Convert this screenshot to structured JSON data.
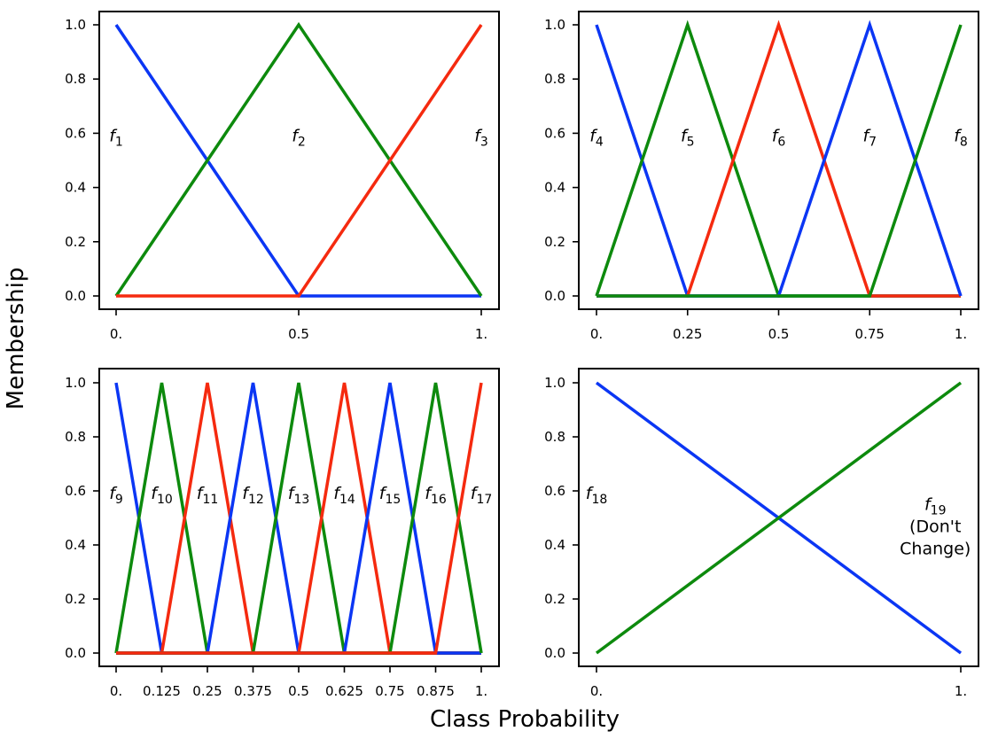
{
  "figure": {
    "xlabel": "Class Probability",
    "ylabel": "Membership"
  },
  "colors": {
    "blue": "#0b36f4",
    "green": "#0d8a0d",
    "red": "#f52a0f"
  },
  "chart_data": [
    {
      "type": "line",
      "xlim": [
        0,
        1
      ],
      "ylim": [
        0,
        1
      ],
      "xticks": [
        0,
        0.5,
        1
      ],
      "xtick_labels": [
        "0.",
        "0.5",
        "1."
      ],
      "yticks": [
        0,
        0.2,
        0.4,
        0.6,
        0.8,
        1.0
      ],
      "ytick_labels": [
        "0.0",
        "0.2",
        "0.4",
        "0.6",
        "0.8",
        "1.0"
      ],
      "series": [
        {
          "name": "f1",
          "color": "blue",
          "x": [
            0,
            0.5,
            1
          ],
          "y": [
            1,
            0,
            0
          ]
        },
        {
          "name": "f2",
          "color": "green",
          "x": [
            0,
            0.5,
            1
          ],
          "y": [
            0,
            1,
            0
          ]
        },
        {
          "name": "f3",
          "color": "red",
          "x": [
            0,
            0.5,
            1
          ],
          "y": [
            0,
            0,
            1
          ]
        }
      ],
      "annotations": [
        {
          "base": "f",
          "sub": "1",
          "x": 0,
          "y": 0.57
        },
        {
          "base": "f",
          "sub": "2",
          "x": 0.5,
          "y": 0.57
        },
        {
          "base": "f",
          "sub": "3",
          "x": 1,
          "y": 0.57
        }
      ]
    },
    {
      "type": "line",
      "xlim": [
        0,
        1
      ],
      "ylim": [
        0,
        1
      ],
      "xticks": [
        0,
        0.25,
        0.5,
        0.75,
        1
      ],
      "xtick_labels": [
        "0.",
        "0.25",
        "0.5",
        "0.75",
        "1."
      ],
      "yticks": [
        0,
        0.2,
        0.4,
        0.6,
        0.8,
        1.0
      ],
      "ytick_labels": [
        "0.0",
        "0.2",
        "0.4",
        "0.6",
        "0.8",
        "1.0"
      ],
      "series": [
        {
          "name": "f4",
          "color": "blue",
          "x": [
            0,
            0.25,
            1
          ],
          "y": [
            1,
            0,
            0
          ]
        },
        {
          "name": "f5",
          "color": "green",
          "x": [
            0,
            0.25,
            0.5,
            1
          ],
          "y": [
            0,
            1,
            0,
            0
          ]
        },
        {
          "name": "f6",
          "color": "red",
          "x": [
            0,
            0.25,
            0.5,
            0.75,
            1
          ],
          "y": [
            0,
            0,
            1,
            0,
            0
          ]
        },
        {
          "name": "f7",
          "color": "blue",
          "x": [
            0,
            0.5,
            0.75,
            1
          ],
          "y": [
            0,
            0,
            1,
            0
          ]
        },
        {
          "name": "f8",
          "color": "green",
          "x": [
            0,
            0.75,
            1
          ],
          "y": [
            0,
            0,
            1
          ]
        }
      ],
      "annotations": [
        {
          "base": "f",
          "sub": "4",
          "x": 0,
          "y": 0.57
        },
        {
          "base": "f",
          "sub": "5",
          "x": 0.25,
          "y": 0.57
        },
        {
          "base": "f",
          "sub": "6",
          "x": 0.5,
          "y": 0.57
        },
        {
          "base": "f",
          "sub": "7",
          "x": 0.75,
          "y": 0.57
        },
        {
          "base": "f",
          "sub": "8",
          "x": 1,
          "y": 0.57
        }
      ]
    },
    {
      "type": "line",
      "xlim": [
        0,
        1
      ],
      "ylim": [
        0,
        1
      ],
      "xticks": [
        0,
        0.125,
        0.25,
        0.375,
        0.5,
        0.625,
        0.75,
        0.875,
        1
      ],
      "xtick_labels": [
        "0.",
        "0.125",
        "0.25",
        "0.375",
        "0.5",
        "0.625",
        "0.75",
        "0.875",
        "1."
      ],
      "yticks": [
        0,
        0.2,
        0.4,
        0.6,
        0.8,
        1.0
      ],
      "ytick_labels": [
        "0.0",
        "0.2",
        "0.4",
        "0.6",
        "0.8",
        "1.0"
      ],
      "series": [
        {
          "name": "f9",
          "color": "blue",
          "x": [
            0,
            0.125,
            1
          ],
          "y": [
            1,
            0,
            0
          ]
        },
        {
          "name": "f10",
          "color": "green",
          "x": [
            0,
            0.125,
            0.25,
            1
          ],
          "y": [
            0,
            1,
            0,
            0
          ]
        },
        {
          "name": "f11",
          "color": "red",
          "x": [
            0,
            0.125,
            0.25,
            0.375,
            1
          ],
          "y": [
            0,
            0,
            1,
            0,
            0
          ]
        },
        {
          "name": "f12",
          "color": "blue",
          "x": [
            0,
            0.25,
            0.375,
            0.5,
            1
          ],
          "y": [
            0,
            0,
            1,
            0,
            0
          ]
        },
        {
          "name": "f13",
          "color": "green",
          "x": [
            0,
            0.375,
            0.5,
            0.625,
            1
          ],
          "y": [
            0,
            0,
            1,
            0,
            0
          ]
        },
        {
          "name": "f14",
          "color": "red",
          "x": [
            0,
            0.5,
            0.625,
            0.75,
            1
          ],
          "y": [
            0,
            0,
            1,
            0,
            0
          ]
        },
        {
          "name": "f15",
          "color": "blue",
          "x": [
            0,
            0.625,
            0.75,
            0.875,
            1
          ],
          "y": [
            0,
            0,
            1,
            0,
            0
          ]
        },
        {
          "name": "f16",
          "color": "green",
          "x": [
            0,
            0.75,
            0.875,
            1
          ],
          "y": [
            0,
            0,
            1,
            0
          ]
        },
        {
          "name": "f17",
          "color": "red",
          "x": [
            0,
            0.875,
            1
          ],
          "y": [
            0,
            0,
            1
          ]
        }
      ],
      "annotations": [
        {
          "base": "f",
          "sub": "9",
          "x": 0,
          "y": 0.57
        },
        {
          "base": "f",
          "sub": "10",
          "x": 0.125,
          "y": 0.57
        },
        {
          "base": "f",
          "sub": "11",
          "x": 0.25,
          "y": 0.57
        },
        {
          "base": "f",
          "sub": "12",
          "x": 0.375,
          "y": 0.57
        },
        {
          "base": "f",
          "sub": "13",
          "x": 0.5,
          "y": 0.57
        },
        {
          "base": "f",
          "sub": "14",
          "x": 0.625,
          "y": 0.57
        },
        {
          "base": "f",
          "sub": "15",
          "x": 0.75,
          "y": 0.57
        },
        {
          "base": "f",
          "sub": "16",
          "x": 0.875,
          "y": 0.57
        },
        {
          "base": "f",
          "sub": "17",
          "x": 1,
          "y": 0.57
        }
      ]
    },
    {
      "type": "line",
      "xlim": [
        0,
        1
      ],
      "ylim": [
        0,
        1
      ],
      "xticks": [
        0,
        1
      ],
      "xtick_labels": [
        "0.",
        "1."
      ],
      "yticks": [
        0,
        0.2,
        0.4,
        0.6,
        0.8,
        1.0
      ],
      "ytick_labels": [
        "0.0",
        "0.2",
        "0.4",
        "0.6",
        "0.8",
        "1.0"
      ],
      "series": [
        {
          "name": "f18",
          "color": "blue",
          "x": [
            0,
            1
          ],
          "y": [
            1,
            0
          ]
        },
        {
          "name": "f19",
          "color": "green",
          "x": [
            0,
            1
          ],
          "y": [
            0,
            1
          ]
        }
      ],
      "annotations": [
        {
          "base": "f",
          "sub": "18",
          "x": 0,
          "y": 0.57
        },
        {
          "base": "f",
          "sub": "19",
          "x": 0.93,
          "y": 0.53,
          "lines": [
            "(Don't",
            "Change)"
          ]
        }
      ]
    }
  ]
}
